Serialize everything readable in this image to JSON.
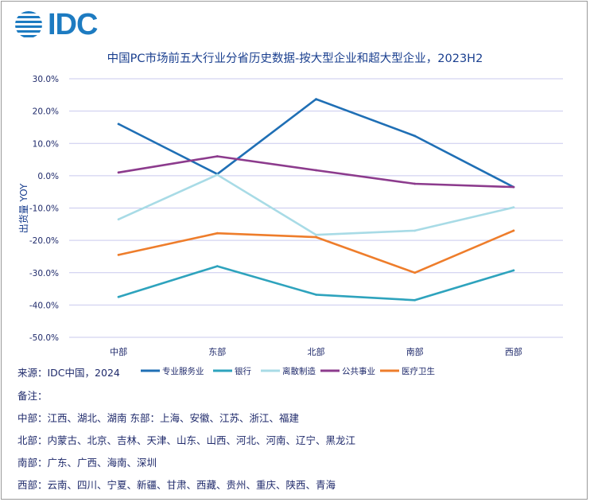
{
  "logo": {
    "text": "IDC"
  },
  "chart_data": {
    "type": "line",
    "title": "中国PC市场前五大行业分省历史数据-按大型企业和超大型企业，2023H2",
    "ylabel": "出货量 YOY",
    "xlabel": "",
    "categories": [
      "中部",
      "东部",
      "北部",
      "南部",
      "西部"
    ],
    "ylim": [
      -50,
      30
    ],
    "yticks": [
      30,
      20,
      10,
      0,
      -10,
      -20,
      -30,
      -40,
      -50
    ],
    "ytick_labels": [
      "30.0%",
      "20.0%",
      "10.0%",
      "0.0%",
      "-10.0%",
      "-20.0%",
      "-30.0%",
      "-40.0%",
      "-50.0%"
    ],
    "grid": true,
    "legend_position": "bottom",
    "series": [
      {
        "name": "专业服务业",
        "color": "#1f6fb5",
        "values": [
          16.0,
          0.5,
          23.7,
          12.3,
          -3.5
        ]
      },
      {
        "name": "银行",
        "color": "#2ea3bd",
        "values": [
          -37.5,
          -28.0,
          -36.8,
          -38.5,
          -29.3
        ]
      },
      {
        "name": "离散制造",
        "color": "#a8dbe6",
        "values": [
          -13.5,
          0.3,
          -18.3,
          -17.0,
          -9.8
        ]
      },
      {
        "name": "公共事业",
        "color": "#8c3b8d",
        "values": [
          1.0,
          6.0,
          1.7,
          -2.5,
          -3.5
        ]
      },
      {
        "name": "医疗卫生",
        "color": "#ee7d2b",
        "values": [
          -24.5,
          -17.8,
          -19.0,
          -30.0,
          -17.0
        ]
      }
    ]
  },
  "footer": {
    "source": "来源：IDC中国，2024",
    "notes_label": "备注：",
    "lines": [
      "中部：江西、湖北、湖南 东部：上海、安徽、江苏、浙江、福建",
      "北部：内蒙古、北京、吉林、天津、山东、山西、河北、河南、辽宁、黑龙江",
      "南部：广东、广西、海南、深圳",
      "西部：云南、四川、宁夏、新疆、甘肃、西藏、贵州、重庆、陕西、青海"
    ]
  }
}
